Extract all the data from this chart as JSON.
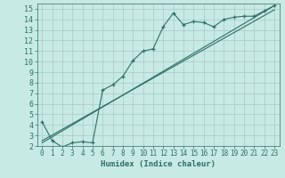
{
  "xlabel": "Humidex (Indice chaleur)",
  "bg_color": "#c8eae4",
  "line_color": "#2d6e65",
  "grid_color": "#a8c8c4",
  "xlim": [
    -0.5,
    23.5
  ],
  "ylim": [
    2,
    15.5
  ],
  "xticks": [
    0,
    1,
    2,
    3,
    4,
    5,
    6,
    7,
    8,
    9,
    10,
    11,
    12,
    13,
    14,
    15,
    16,
    17,
    18,
    19,
    20,
    21,
    22,
    23
  ],
  "yticks": [
    2,
    3,
    4,
    5,
    6,
    7,
    8,
    9,
    10,
    11,
    12,
    13,
    14,
    15
  ],
  "line1_x": [
    0,
    1,
    2,
    3,
    4,
    5,
    6,
    7,
    8,
    9,
    10,
    11,
    12,
    13,
    14,
    15,
    16,
    17,
    18,
    19,
    20,
    21,
    22,
    23
  ],
  "line1_y": [
    4.3,
    2.5,
    1.9,
    2.3,
    2.4,
    2.3,
    7.3,
    7.8,
    8.6,
    10.1,
    11.0,
    11.2,
    13.3,
    14.6,
    13.5,
    13.8,
    13.7,
    13.3,
    14.0,
    14.2,
    14.3,
    14.3,
    14.8,
    15.3
  ],
  "line2_x": [
    0,
    23
  ],
  "line2_y": [
    2.3,
    15.3
  ],
  "line3_x": [
    0,
    23
  ],
  "line3_y": [
    2.5,
    14.9
  ]
}
